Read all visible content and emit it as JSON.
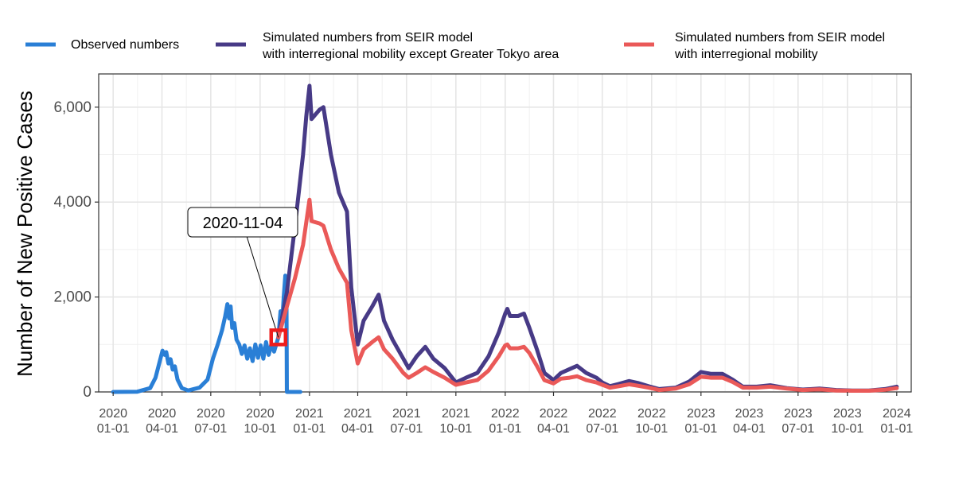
{
  "chart_data": {
    "type": "line",
    "title": "",
    "xlabel": "",
    "ylabel": "Number of New Positive Cases",
    "ylim": [
      0,
      6700
    ],
    "xlim": [
      "2019-12-05",
      "2024-01-28"
    ],
    "y_ticks": [
      {
        "value": 0,
        "label": "0"
      },
      {
        "value": 2000,
        "label": "2,000"
      },
      {
        "value": 4000,
        "label": "4,000"
      },
      {
        "value": 6000,
        "label": "6,000"
      }
    ],
    "x_ticks": [
      {
        "date": "2020-01-01",
        "line1": "2020",
        "line2": "01-01"
      },
      {
        "date": "2020-04-01",
        "line1": "2020",
        "line2": "04-01"
      },
      {
        "date": "2020-07-01",
        "line1": "2020",
        "line2": "07-01"
      },
      {
        "date": "2020-10-01",
        "line1": "2020",
        "line2": "10-01"
      },
      {
        "date": "2021-01-01",
        "line1": "2021",
        "line2": "01-01"
      },
      {
        "date": "2021-04-01",
        "line1": "2021",
        "line2": "04-01"
      },
      {
        "date": "2021-07-01",
        "line1": "2021",
        "line2": "07-01"
      },
      {
        "date": "2021-10-01",
        "line1": "2021",
        "line2": "10-01"
      },
      {
        "date": "2022-01-01",
        "line1": "2022",
        "line2": "01-01"
      },
      {
        "date": "2022-04-01",
        "line1": "2022",
        "line2": "04-01"
      },
      {
        "date": "2022-07-01",
        "line1": "2022",
        "line2": "07-01"
      },
      {
        "date": "2022-10-01",
        "line1": "2022",
        "line2": "10-01"
      },
      {
        "date": "2023-01-01",
        "line1": "2023",
        "line2": "01-01"
      },
      {
        "date": "2023-04-01",
        "line1": "2023",
        "line2": "04-01"
      },
      {
        "date": "2023-07-01",
        "line1": "2023",
        "line2": "07-01"
      },
      {
        "date": "2023-10-01",
        "line1": "2023",
        "line2": "10-01"
      },
      {
        "date": "2024-01-01",
        "line1": "2024",
        "line2": "01-01"
      }
    ],
    "grid": true,
    "legend_position": "top",
    "series": [
      {
        "name": "Observed numbers",
        "color": "#2a7fd6",
        "points": [
          [
            "2020-01-01",
            0
          ],
          [
            "2020-02-15",
            5
          ],
          [
            "2020-03-10",
            80
          ],
          [
            "2020-03-20",
            300
          ],
          [
            "2020-03-28",
            650
          ],
          [
            "2020-04-02",
            870
          ],
          [
            "2020-04-06",
            780
          ],
          [
            "2020-04-09",
            840
          ],
          [
            "2020-04-13",
            600
          ],
          [
            "2020-04-17",
            690
          ],
          [
            "2020-04-21",
            470
          ],
          [
            "2020-04-25",
            540
          ],
          [
            "2020-04-30",
            260
          ],
          [
            "2020-05-08",
            80
          ],
          [
            "2020-05-20",
            30
          ],
          [
            "2020-06-10",
            90
          ],
          [
            "2020-06-25",
            260
          ],
          [
            "2020-07-05",
            700
          ],
          [
            "2020-07-14",
            1000
          ],
          [
            "2020-07-22",
            1300
          ],
          [
            "2020-07-28",
            1600
          ],
          [
            "2020-08-01",
            1850
          ],
          [
            "2020-08-04",
            1550
          ],
          [
            "2020-08-07",
            1800
          ],
          [
            "2020-08-10",
            1350
          ],
          [
            "2020-08-14",
            1450
          ],
          [
            "2020-08-18",
            1100
          ],
          [
            "2020-08-23",
            1000
          ],
          [
            "2020-08-28",
            800
          ],
          [
            "2020-09-02",
            980
          ],
          [
            "2020-09-07",
            700
          ],
          [
            "2020-09-12",
            920
          ],
          [
            "2020-09-17",
            650
          ],
          [
            "2020-09-22",
            1000
          ],
          [
            "2020-09-27",
            720
          ],
          [
            "2020-10-02",
            980
          ],
          [
            "2020-10-07",
            700
          ],
          [
            "2020-10-12",
            1050
          ],
          [
            "2020-10-17",
            780
          ],
          [
            "2020-10-22",
            1000
          ],
          [
            "2020-10-27",
            850
          ],
          [
            "2020-11-04",
            1150
          ],
          [
            "2020-11-08",
            1700
          ],
          [
            "2020-11-11",
            1450
          ],
          [
            "2020-11-14",
            2000
          ],
          [
            "2020-11-17",
            2450
          ],
          [
            "2020-11-19",
            2300
          ],
          [
            "2020-11-20",
            0
          ],
          [
            "2020-12-15",
            0
          ]
        ]
      },
      {
        "name": "Simulated numbers from SEIR model with interregional mobility except Greater Tokyo area",
        "color": "#473a86",
        "points": [
          [
            "2020-11-04",
            1150
          ],
          [
            "2020-11-20",
            2100
          ],
          [
            "2020-12-05",
            3500
          ],
          [
            "2020-12-20",
            5000
          ],
          [
            "2020-12-26",
            5800
          ],
          [
            "2021-01-01",
            6450
          ],
          [
            "2021-01-05",
            5750
          ],
          [
            "2021-01-20",
            5950
          ],
          [
            "2021-01-27",
            6000
          ],
          [
            "2021-02-10",
            5000
          ],
          [
            "2021-02-25",
            4200
          ],
          [
            "2021-03-12",
            3800
          ],
          [
            "2021-03-20",
            2200
          ],
          [
            "2021-04-01",
            1000
          ],
          [
            "2021-04-12",
            1500
          ],
          [
            "2021-04-28",
            1800
          ],
          [
            "2021-05-10",
            2050
          ],
          [
            "2021-05-20",
            1500
          ],
          [
            "2021-06-05",
            1100
          ],
          [
            "2021-06-25",
            700
          ],
          [
            "2021-07-05",
            500
          ],
          [
            "2021-07-20",
            750
          ],
          [
            "2021-08-05",
            950
          ],
          [
            "2021-08-20",
            700
          ],
          [
            "2021-09-10",
            500
          ],
          [
            "2021-10-01",
            200
          ],
          [
            "2021-10-20",
            300
          ],
          [
            "2021-11-10",
            400
          ],
          [
            "2021-12-01",
            750
          ],
          [
            "2021-12-20",
            1250
          ],
          [
            "2022-01-01",
            1650
          ],
          [
            "2022-01-05",
            1750
          ],
          [
            "2022-01-10",
            1600
          ],
          [
            "2022-01-25",
            1600
          ],
          [
            "2022-02-05",
            1650
          ],
          [
            "2022-02-15",
            1350
          ],
          [
            "2022-03-01",
            900
          ],
          [
            "2022-03-15",
            400
          ],
          [
            "2022-04-01",
            250
          ],
          [
            "2022-04-15",
            400
          ],
          [
            "2022-05-01",
            480
          ],
          [
            "2022-05-15",
            550
          ],
          [
            "2022-06-01",
            400
          ],
          [
            "2022-06-20",
            300
          ],
          [
            "2022-07-01",
            200
          ],
          [
            "2022-07-15",
            120
          ],
          [
            "2022-08-01",
            170
          ],
          [
            "2022-08-20",
            230
          ],
          [
            "2022-09-05",
            190
          ],
          [
            "2022-09-25",
            120
          ],
          [
            "2022-10-15",
            60
          ],
          [
            "2022-11-15",
            90
          ],
          [
            "2022-12-10",
            220
          ],
          [
            "2023-01-01",
            420
          ],
          [
            "2023-01-20",
            380
          ],
          [
            "2023-02-10",
            380
          ],
          [
            "2023-03-01",
            260
          ],
          [
            "2023-03-20",
            110
          ],
          [
            "2023-04-15",
            110
          ],
          [
            "2023-05-10",
            140
          ],
          [
            "2023-06-10",
            80
          ],
          [
            "2023-07-10",
            50
          ],
          [
            "2023-08-10",
            70
          ],
          [
            "2023-09-10",
            40
          ],
          [
            "2023-10-10",
            30
          ],
          [
            "2023-11-10",
            30
          ],
          [
            "2023-12-10",
            60
          ],
          [
            "2024-01-01",
            110
          ]
        ]
      },
      {
        "name": "Simulated numbers from SEIR model with interregional mobility",
        "color": "#ea5958",
        "points": [
          [
            "2020-11-04",
            1150
          ],
          [
            "2020-11-20",
            1800
          ],
          [
            "2020-12-05",
            2400
          ],
          [
            "2020-12-20",
            3100
          ],
          [
            "2021-01-01",
            4050
          ],
          [
            "2021-01-05",
            3600
          ],
          [
            "2021-01-20",
            3550
          ],
          [
            "2021-01-27",
            3500
          ],
          [
            "2021-02-10",
            3000
          ],
          [
            "2021-02-25",
            2600
          ],
          [
            "2021-03-12",
            2300
          ],
          [
            "2021-03-20",
            1300
          ],
          [
            "2021-04-01",
            600
          ],
          [
            "2021-04-12",
            900
          ],
          [
            "2021-04-28",
            1050
          ],
          [
            "2021-05-10",
            1150
          ],
          [
            "2021-05-20",
            900
          ],
          [
            "2021-06-05",
            700
          ],
          [
            "2021-06-25",
            400
          ],
          [
            "2021-07-05",
            300
          ],
          [
            "2021-07-20",
            400
          ],
          [
            "2021-08-05",
            520
          ],
          [
            "2021-08-20",
            420
          ],
          [
            "2021-09-10",
            300
          ],
          [
            "2021-10-01",
            150
          ],
          [
            "2021-10-20",
            200
          ],
          [
            "2021-11-10",
            250
          ],
          [
            "2021-12-01",
            450
          ],
          [
            "2021-12-20",
            750
          ],
          [
            "2022-01-01",
            980
          ],
          [
            "2022-01-05",
            1000
          ],
          [
            "2022-01-10",
            920
          ],
          [
            "2022-01-25",
            920
          ],
          [
            "2022-02-05",
            950
          ],
          [
            "2022-02-15",
            820
          ],
          [
            "2022-03-01",
            550
          ],
          [
            "2022-03-15",
            250
          ],
          [
            "2022-04-01",
            180
          ],
          [
            "2022-04-15",
            280
          ],
          [
            "2022-05-01",
            300
          ],
          [
            "2022-05-15",
            330
          ],
          [
            "2022-06-01",
            250
          ],
          [
            "2022-06-20",
            200
          ],
          [
            "2022-07-01",
            150
          ],
          [
            "2022-07-15",
            90
          ],
          [
            "2022-08-01",
            120
          ],
          [
            "2022-08-20",
            160
          ],
          [
            "2022-09-05",
            130
          ],
          [
            "2022-09-25",
            90
          ],
          [
            "2022-10-15",
            40
          ],
          [
            "2022-11-15",
            70
          ],
          [
            "2022-12-10",
            160
          ],
          [
            "2023-01-01",
            320
          ],
          [
            "2023-01-20",
            300
          ],
          [
            "2023-02-10",
            300
          ],
          [
            "2023-03-01",
            210
          ],
          [
            "2023-03-20",
            90
          ],
          [
            "2023-04-15",
            90
          ],
          [
            "2023-05-10",
            110
          ],
          [
            "2023-06-10",
            70
          ],
          [
            "2023-07-10",
            40
          ],
          [
            "2023-08-10",
            55
          ],
          [
            "2023-09-10",
            30
          ],
          [
            "2023-10-10",
            25
          ],
          [
            "2023-11-10",
            25
          ],
          [
            "2023-12-10",
            45
          ],
          [
            "2024-01-01",
            80
          ]
        ]
      }
    ],
    "legend": [
      {
        "line1": "Observed numbers",
        "line2": "",
        "color": "#2a7fd6"
      },
      {
        "line1": "Simulated numbers from SEIR model",
        "line2": "with interregional mobility except Greater Tokyo area",
        "color": "#473a86"
      },
      {
        "line1": "Simulated numbers from SEIR model",
        "line2": "with interregional mobility",
        "color": "#ea5958"
      }
    ],
    "annotation": {
      "text": "2020-11-04",
      "date": "2020-11-04",
      "value": 1150,
      "marker_color": "#ee1c1c"
    }
  }
}
